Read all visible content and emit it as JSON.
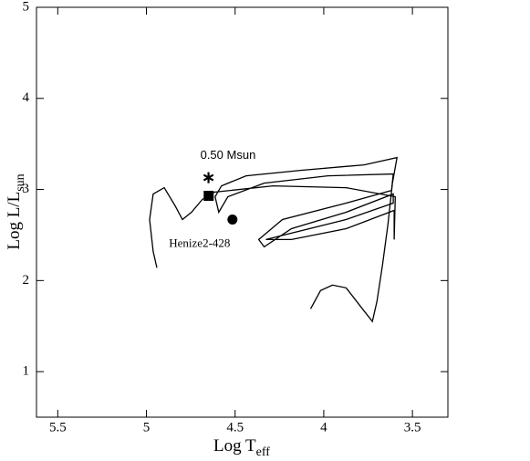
{
  "chart_data": {
    "type": "line",
    "xlabel": {
      "text": "Log T",
      "sub": "eff"
    },
    "ylabel": {
      "text": "Log L/L",
      "sub": "sun"
    },
    "xlim": [
      5.62,
      3.3
    ],
    "ylim": [
      0.5,
      5
    ],
    "xticks": [
      5.5,
      5,
      4.5,
      4,
      3.5
    ],
    "yticks": [
      1,
      2,
      3,
      4,
      5
    ],
    "series": [
      {
        "color": "#000000",
        "x": [
          4.074,
          4.018,
          3.951,
          3.874,
          3.782,
          3.726,
          3.7,
          3.669,
          3.638,
          3.613,
          3.587,
          3.772,
          4.131,
          4.438,
          4.577,
          4.613,
          4.592,
          4.541,
          4.336,
          3.977,
          3.608,
          3.618,
          3.874,
          4.233,
          4.367,
          4.336,
          4.182,
          3.874,
          3.608,
          3.608,
          3.874,
          4.182,
          4.326,
          4.182,
          3.874,
          3.603,
          3.603,
          3.597,
          3.874,
          4.285,
          4.618,
          4.685,
          4.746,
          4.797,
          4.838,
          4.9,
          4.962,
          4.982,
          4.962,
          4.941
        ],
        "y": [
          1.69,
          1.89,
          1.95,
          1.92,
          1.69,
          1.55,
          1.77,
          2.17,
          2.62,
          3.07,
          3.35,
          3.27,
          3.21,
          3.15,
          3.04,
          2.92,
          2.75,
          2.92,
          3.07,
          3.15,
          3.17,
          2.99,
          2.85,
          2.67,
          2.45,
          2.37,
          2.57,
          2.75,
          2.95,
          2.85,
          2.67,
          2.52,
          2.45,
          2.45,
          2.57,
          2.77,
          2.45,
          2.92,
          3.02,
          3.04,
          2.97,
          2.89,
          2.75,
          2.67,
          2.82,
          3.02,
          2.95,
          2.67,
          2.32,
          2.14
        ]
      }
    ],
    "markers": {
      "x": [
        4.65,
        4.649,
        4.515
      ],
      "y": [
        3.13,
        2.93,
        2.67
      ],
      "shapes": [
        "star",
        "square",
        "circle"
      ],
      "color": "#000000"
    },
    "annotations": [
      {
        "text": "0.50 Msun",
        "x": 4.54,
        "y": 3.37,
        "font": "sans"
      },
      {
        "text": "Henize2-428",
        "x": 4.7,
        "y": 2.4,
        "font": "serif"
      }
    ]
  }
}
